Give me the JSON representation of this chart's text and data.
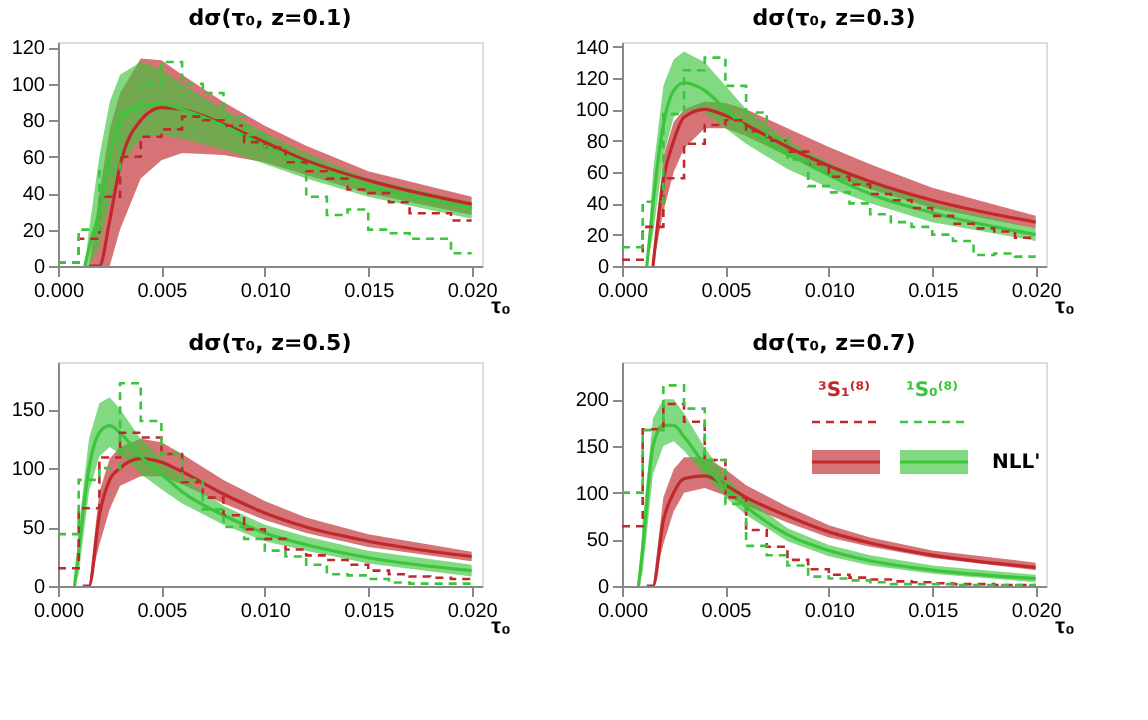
{
  "chart_data": [
    {
      "type": "line",
      "title": "dσ(τ₀, z=0.1)",
      "xlabel": "τ₀",
      "xlim": [
        0,
        0.0205
      ],
      "ylim": [
        0,
        123
      ],
      "xticks": [
        {
          "value": 0,
          "label": "0.000"
        },
        {
          "value": 0.005,
          "label": "0.005"
        },
        {
          "value": 0.01,
          "label": "0.010"
        },
        {
          "value": 0.015,
          "label": "0.015"
        },
        {
          "value": 0.02,
          "label": "0.020"
        }
      ],
      "yticks": [
        0,
        20,
        40,
        60,
        80,
        100,
        120
      ],
      "grid": false,
      "line_style": "solid",
      "marker": "none",
      "series": [
        {
          "type": "line",
          "color": "#c0282c",
          "x": [
            0.0015,
            0.002,
            0.0025,
            0.003,
            0.004,
            0.005,
            0.006,
            0.008,
            0.01,
            0.012,
            0.015,
            0.02
          ],
          "values": [
            0,
            0,
            25,
            55,
            80,
            87,
            86,
            78,
            68,
            58,
            47,
            34
          ],
          "lower": [
            0,
            0,
            0,
            20,
            48,
            58,
            62,
            61,
            57,
            50,
            40,
            28
          ],
          "upper": [
            0,
            40,
            75,
            95,
            114,
            113,
            105,
            90,
            77,
            66,
            52,
            38
          ]
        },
        {
          "type": "line",
          "color": "#3dc43d",
          "x": [
            0.0013,
            0.0015,
            0.002,
            0.0025,
            0.003,
            0.004,
            0.005,
            0.006,
            0.008,
            0.01,
            0.012,
            0.015,
            0.02
          ],
          "values": [
            0,
            10,
            30,
            60,
            80,
            88,
            89,
            86,
            77,
            66,
            56,
            44,
            32
          ],
          "lower": [
            0,
            0,
            10,
            35,
            55,
            70,
            72,
            70,
            64,
            56,
            48,
            38,
            26
          ],
          "upper": [
            0,
            20,
            60,
            90,
            105,
            112,
            108,
            100,
            86,
            73,
            62,
            48,
            35
          ]
        },
        {
          "type": "step",
          "color": "#c0282c",
          "line_style": "dashed",
          "x": [
            0,
            0.001,
            0.002,
            0.003,
            0.004,
            0.005,
            0.006,
            0.007,
            0.008,
            0.009,
            0.01,
            0.011,
            0.012,
            0.013,
            0.014,
            0.015,
            0.016,
            0.017,
            0.018,
            0.019,
            0.02
          ],
          "values": [
            2,
            15,
            38,
            60,
            71,
            75,
            82,
            80,
            77,
            68,
            65,
            57,
            52,
            48,
            42,
            40,
            35,
            29,
            29,
            25,
            25
          ]
        },
        {
          "type": "step",
          "color": "#3dc43d",
          "line_style": "dashed",
          "x": [
            0,
            0.001,
            0.002,
            0.003,
            0.004,
            0.005,
            0.006,
            0.007,
            0.008,
            0.009,
            0.01,
            0.011,
            0.012,
            0.013,
            0.014,
            0.015,
            0.016,
            0.017,
            0.018,
            0.019,
            0.02
          ],
          "values": [
            2,
            20,
            52,
            85,
            100,
            112,
            100,
            95,
            82,
            72,
            60,
            55,
            38,
            28,
            31,
            20,
            18,
            15,
            15,
            7,
            7
          ]
        }
      ]
    },
    {
      "type": "line",
      "title": "dσ(τ₀, z=0.3)",
      "xlabel": "τ₀",
      "xlim": [
        0,
        0.0205
      ],
      "ylim": [
        0,
        143
      ],
      "xticks": [
        {
          "value": 0,
          "label": "0.000"
        },
        {
          "value": 0.005,
          "label": "0.005"
        },
        {
          "value": 0.01,
          "label": "0.010"
        },
        {
          "value": 0.015,
          "label": "0.015"
        },
        {
          "value": 0.02,
          "label": "0.020"
        }
      ],
      "yticks": [
        0,
        20,
        40,
        60,
        80,
        100,
        120,
        140
      ],
      "grid": false,
      "line_style": "solid",
      "marker": "none",
      "series": [
        {
          "type": "line",
          "color": "#c0282c",
          "x": [
            0.0015,
            0.002,
            0.0025,
            0.003,
            0.004,
            0.005,
            0.006,
            0.008,
            0.01,
            0.012,
            0.015,
            0.02
          ],
          "values": [
            0,
            55,
            80,
            95,
            100,
            96,
            90,
            76,
            64,
            54,
            42,
            28
          ],
          "lower": [
            0,
            35,
            60,
            75,
            88,
            88,
            83,
            70,
            58,
            49,
            37,
            24
          ],
          "upper": [
            0,
            70,
            92,
            100,
            105,
            104,
            100,
            88,
            76,
            65,
            50,
            32
          ]
        },
        {
          "type": "line",
          "color": "#3dc43d",
          "x": [
            0.0012,
            0.0015,
            0.002,
            0.0025,
            0.003,
            0.004,
            0.005,
            0.006,
            0.008,
            0.01,
            0.012,
            0.015,
            0.02
          ],
          "values": [
            0,
            40,
            90,
            112,
            117,
            112,
            100,
            88,
            72,
            58,
            46,
            34,
            20
          ],
          "lower": [
            0,
            20,
            70,
            95,
            100,
            98,
            88,
            78,
            62,
            50,
            40,
            28,
            16
          ],
          "upper": [
            0,
            60,
            115,
            132,
            137,
            130,
            115,
            100,
            80,
            66,
            54,
            40,
            24
          ]
        },
        {
          "type": "step",
          "color": "#c0282c",
          "line_style": "dashed",
          "x": [
            0,
            0.001,
            0.002,
            0.003,
            0.004,
            0.005,
            0.006,
            0.007,
            0.008,
            0.009,
            0.01,
            0.011,
            0.012,
            0.013,
            0.014,
            0.015,
            0.016,
            0.017,
            0.018,
            0.019,
            0.02
          ],
          "values": [
            4,
            25,
            56,
            78,
            90,
            93,
            86,
            80,
            73,
            65,
            57,
            52,
            46,
            42,
            37,
            32,
            27,
            24,
            22,
            18,
            18
          ]
        },
        {
          "type": "step",
          "color": "#3dc43d",
          "line_style": "dashed",
          "x": [
            0,
            0.001,
            0.002,
            0.003,
            0.004,
            0.005,
            0.006,
            0.007,
            0.008,
            0.009,
            0.01,
            0.011,
            0.012,
            0.013,
            0.014,
            0.015,
            0.016,
            0.017,
            0.018,
            0.019,
            0.02
          ],
          "values": [
            12,
            41,
            97,
            125,
            133,
            115,
            98,
            82,
            68,
            51,
            47,
            40,
            33,
            28,
            25,
            20,
            16,
            7,
            8,
            6,
            6
          ]
        }
      ]
    },
    {
      "type": "line",
      "title": "dσ(τ₀, z=0.5)",
      "xlabel": "τ₀",
      "xlim": [
        0,
        0.0205
      ],
      "ylim": [
        0,
        190
      ],
      "xticks": [
        {
          "value": 0,
          "label": "0.000"
        },
        {
          "value": 0.005,
          "label": "0.005"
        },
        {
          "value": 0.01,
          "label": "0.010"
        },
        {
          "value": 0.015,
          "label": "0.015"
        },
        {
          "value": 0.02,
          "label": "0.020"
        }
      ],
      "yticks": [
        0,
        50,
        100,
        150
      ],
      "grid": false,
      "line_style": "solid",
      "marker": "none",
      "series": [
        {
          "type": "line",
          "color": "#c0282c",
          "x": [
            0.0012,
            0.0015,
            0.002,
            0.0025,
            0.003,
            0.004,
            0.005,
            0.006,
            0.008,
            0.01,
            0.012,
            0.015,
            0.02
          ],
          "values": [
            0,
            0,
            60,
            90,
            100,
            108,
            105,
            97,
            78,
            62,
            50,
            38,
            25
          ],
          "lower": [
            0,
            0,
            35,
            65,
            85,
            93,
            93,
            86,
            70,
            56,
            45,
            33,
            21
          ],
          "upper": [
            0,
            0,
            80,
            108,
            118,
            125,
            122,
            112,
            90,
            72,
            58,
            44,
            29
          ]
        },
        {
          "type": "line",
          "color": "#3dc43d",
          "x": [
            0.0008,
            0.001,
            0.0015,
            0.002,
            0.0025,
            0.003,
            0.004,
            0.005,
            0.006,
            0.008,
            0.01,
            0.012,
            0.015,
            0.02
          ],
          "values": [
            0,
            30,
            100,
            130,
            136,
            130,
            110,
            95,
            80,
            60,
            45,
            35,
            24,
            13
          ],
          "lower": [
            0,
            10,
            80,
            110,
            118,
            112,
            95,
            82,
            70,
            52,
            38,
            30,
            19,
            8
          ],
          "upper": [
            0,
            50,
            125,
            155,
            160,
            150,
            125,
            108,
            92,
            68,
            52,
            42,
            30,
            18
          ]
        },
        {
          "type": "step",
          "color": "#c0282c",
          "line_style": "dashed",
          "x": [
            0,
            0.001,
            0.002,
            0.003,
            0.004,
            0.005,
            0.006,
            0.007,
            0.008,
            0.009,
            0.01,
            0.011,
            0.012,
            0.013,
            0.014,
            0.015,
            0.016,
            0.017,
            0.018,
            0.019,
            0.02
          ],
          "values": [
            15,
            66,
            109,
            130,
            126,
            112,
            88,
            75,
            60,
            48,
            40,
            31,
            26,
            22,
            18,
            13,
            10,
            8,
            7,
            6,
            6
          ]
        },
        {
          "type": "step",
          "color": "#3dc43d",
          "line_style": "dashed",
          "x": [
            0,
            0.001,
            0.002,
            0.003,
            0.004,
            0.005,
            0.006,
            0.007,
            0.008,
            0.009,
            0.01,
            0.011,
            0.012,
            0.013,
            0.014,
            0.015,
            0.016,
            0.017,
            0.018,
            0.019,
            0.02
          ],
          "values": [
            44,
            90,
            100,
            172,
            140,
            112,
            90,
            65,
            50,
            40,
            30,
            25,
            18,
            10,
            9,
            6,
            3,
            2,
            2,
            2,
            2
          ]
        }
      ]
    },
    {
      "type": "line",
      "title": "dσ(τ₀, z=0.7)",
      "xlabel": "τ₀",
      "xlim": [
        0,
        0.0205
      ],
      "ylim": [
        0,
        240
      ],
      "xticks": [
        {
          "value": 0,
          "label": "0.000"
        },
        {
          "value": 0.005,
          "label": "0.005"
        },
        {
          "value": 0.01,
          "label": "0.010"
        },
        {
          "value": 0.015,
          "label": "0.015"
        },
        {
          "value": 0.02,
          "label": "0.020"
        }
      ],
      "yticks": [
        0,
        50,
        100,
        150,
        200
      ],
      "grid": false,
      "line_style": "solid",
      "marker": "none",
      "legend": "top right",
      "annotations": [
        "NLL'"
      ],
      "series": [
        {
          "type": "line",
          "name": "³S₁⁽⁸⁾",
          "color": "#c0282c",
          "x": [
            0.0012,
            0.0015,
            0.002,
            0.0025,
            0.003,
            0.004,
            0.005,
            0.006,
            0.008,
            0.01,
            0.012,
            0.015,
            0.02
          ],
          "values": [
            0,
            0,
            70,
            100,
            115,
            118,
            108,
            95,
            75,
            58,
            46,
            33,
            20
          ],
          "lower": [
            0,
            0,
            45,
            80,
            100,
            105,
            97,
            86,
            68,
            52,
            42,
            30,
            17
          ],
          "upper": [
            0,
            0,
            95,
            125,
            138,
            138,
            125,
            108,
            85,
            65,
            52,
            38,
            25
          ]
        },
        {
          "type": "line",
          "name": "¹S₀⁽⁸⁾",
          "color": "#3dc43d",
          "x": [
            0.0008,
            0.001,
            0.0015,
            0.002,
            0.0025,
            0.003,
            0.004,
            0.005,
            0.006,
            0.008,
            0.01,
            0.012,
            0.015,
            0.02
          ],
          "values": [
            0,
            40,
            150,
            172,
            172,
            160,
            130,
            105,
            85,
            55,
            38,
            27,
            17,
            8
          ],
          "lower": [
            0,
            15,
            120,
            150,
            155,
            145,
            118,
            95,
            76,
            48,
            32,
            22,
            13,
            4
          ],
          "upper": [
            0,
            70,
            180,
            200,
            200,
            185,
            148,
            118,
            95,
            62,
            44,
            33,
            22,
            12
          ]
        },
        {
          "type": "step",
          "color": "#c0282c",
          "line_style": "dashed",
          "x": [
            0,
            0.001,
            0.002,
            0.003,
            0.004,
            0.005,
            0.006,
            0.007,
            0.008,
            0.009,
            0.01,
            0.011,
            0.012,
            0.013,
            0.014,
            0.015,
            0.016,
            0.017,
            0.018,
            0.019,
            0.02
          ],
          "values": [
            64,
            168,
            195,
            176,
            135,
            95,
            60,
            42,
            28,
            18,
            12,
            9,
            7,
            5,
            4,
            3,
            2,
            2,
            1,
            1,
            1
          ]
        },
        {
          "type": "step",
          "color": "#3dc43d",
          "line_style": "dashed",
          "x": [
            0,
            0.001,
            0.002,
            0.003,
            0.004,
            0.005,
            0.006,
            0.007,
            0.008,
            0.009,
            0.01,
            0.011,
            0.012,
            0.013,
            0.014,
            0.015,
            0.016,
            0.017,
            0.018,
            0.019,
            0.02
          ],
          "values": [
            100,
            167,
            215,
            190,
            135,
            88,
            43,
            33,
            22,
            10,
            8,
            6,
            4,
            2,
            2,
            2,
            1,
            1,
            1,
            1,
            1
          ]
        }
      ]
    }
  ]
}
